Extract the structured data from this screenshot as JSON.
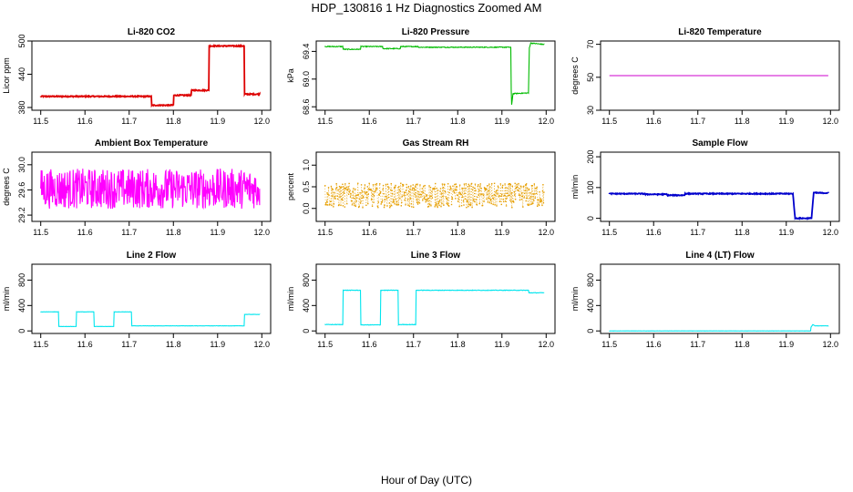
{
  "figure": {
    "title": "HDP_130816  1 Hz Diagnostics Zoomed AM",
    "xlabel": "Hour of Day (UTC)"
  },
  "chart_data": [
    {
      "type": "line",
      "title": "Li-820 CO2",
      "ylabel": "Licor ppm",
      "color": "#dd0000",
      "xlim": [
        11.5,
        12.0
      ],
      "ylim": [
        375,
        500
      ],
      "xticks": [
        "11.5",
        "11.6",
        "11.7",
        "11.8",
        "11.9",
        "12.0"
      ],
      "yticks": [
        {
          "v": 380,
          "t": "380"
        },
        {
          "v": 440,
          "t": "440"
        },
        {
          "v": 500,
          "t": "500"
        }
      ],
      "noise": 1,
      "x": [
        11.5,
        11.75,
        11.751,
        11.8,
        11.801,
        11.84,
        11.841,
        11.88,
        11.881,
        11.96,
        11.961,
        11.995
      ],
      "y": [
        400,
        400,
        384,
        384,
        402,
        402,
        411,
        411,
        491,
        491,
        404,
        404
      ]
    },
    {
      "type": "line",
      "title": "Li-820 Pressure",
      "ylabel": "kPa",
      "color": "#00bb00",
      "xlim": [
        11.5,
        12.0
      ],
      "ylim": [
        68.55,
        69.55
      ],
      "xticks": [
        "11.5",
        "11.6",
        "11.7",
        "11.8",
        "11.9",
        "12.0"
      ],
      "yticks": [
        {
          "v": 68.6,
          "t": "68.6"
        },
        {
          "v": 69.0,
          "t": "69.0"
        },
        {
          "v": 69.4,
          "t": "69.4"
        }
      ],
      "noise": 0.006,
      "x": [
        11.5,
        11.54,
        11.541,
        11.58,
        11.581,
        11.63,
        11.631,
        11.67,
        11.671,
        11.71,
        11.711,
        11.92,
        11.921,
        11.922,
        11.925,
        11.96,
        11.962,
        11.965,
        11.995
      ],
      "y": [
        69.47,
        69.47,
        69.43,
        69.43,
        69.47,
        69.47,
        69.44,
        69.44,
        69.47,
        69.47,
        69.46,
        69.46,
        68.85,
        68.63,
        68.79,
        68.8,
        69.45,
        69.52,
        69.5
      ]
    },
    {
      "type": "line",
      "title": "Li-820 Temperature",
      "ylabel": "degrees C",
      "color": "#cc00cc",
      "xlim": [
        11.5,
        12.0
      ],
      "ylim": [
        30,
        72
      ],
      "xticks": [
        "11.5",
        "11.6",
        "11.7",
        "11.8",
        "11.9",
        "12.0"
      ],
      "yticks": [
        {
          "v": 30,
          "t": "30"
        },
        {
          "v": 50,
          "t": "50"
        },
        {
          "v": 70,
          "t": "70"
        }
      ],
      "noise": 0,
      "x": [
        11.5,
        11.995
      ],
      "y": [
        51,
        51
      ]
    },
    {
      "type": "line",
      "title": "Ambient Box Temperature",
      "ylabel": "degrees C",
      "color": "#ff00ff",
      "xlim": [
        11.5,
        12.0
      ],
      "ylim": [
        29.1,
        30.2
      ],
      "xticks": [
        "11.5",
        "11.6",
        "11.7",
        "11.8",
        "11.9",
        "12.0"
      ],
      "yticks": [
        {
          "v": 29.2,
          "t": "29.2"
        },
        {
          "v": 29.6,
          "t": "29.6"
        },
        {
          "v": 30.0,
          "t": "30.0"
        }
      ],
      "noise": 0.32,
      "x": [
        11.5,
        11.995
      ],
      "y": [
        29.62,
        29.62
      ]
    },
    {
      "type": "scatter",
      "title": "Gas Stream RH",
      "ylabel": "percent",
      "color": "#e69f00",
      "xlim": [
        11.5,
        12.0
      ],
      "ylim": [
        -0.3,
        1.3
      ],
      "xticks": [
        "11.5",
        "11.6",
        "11.7",
        "11.8",
        "11.9",
        "12.0"
      ],
      "yticks": [
        {
          "v": 0.0,
          "t": "0.0"
        },
        {
          "v": 0.5,
          "t": "0.5"
        },
        {
          "v": 1.0,
          "t": "1.0"
        }
      ],
      "noise": 0.28,
      "x": [
        11.5,
        11.995
      ],
      "y": [
        0.3,
        0.3
      ]
    },
    {
      "type": "line",
      "title": "Sample Flow",
      "ylabel": "ml/min",
      "color": "#0000cc",
      "xlim": [
        11.5,
        12.0
      ],
      "ylim": [
        -10,
        215
      ],
      "xticks": [
        "11.5",
        "11.6",
        "11.7",
        "11.8",
        "11.9",
        "12.0"
      ],
      "yticks": [
        {
          "v": 0,
          "t": "0"
        },
        {
          "v": 100,
          "t": "100"
        },
        {
          "v": 200,
          "t": "200"
        }
      ],
      "noise": 1.5,
      "x": [
        11.5,
        11.58,
        11.581,
        11.63,
        11.631,
        11.67,
        11.671,
        11.71,
        11.711,
        11.915,
        11.92,
        11.957,
        11.962,
        11.995
      ],
      "y": [
        80,
        80,
        78,
        78,
        75,
        75,
        80,
        80,
        80,
        80,
        0,
        0,
        83,
        82
      ]
    },
    {
      "type": "line",
      "title": "Line 2 Flow",
      "ylabel": "ml/min",
      "color": "#00e5ee",
      "xlim": [
        11.5,
        12.0
      ],
      "ylim": [
        -40,
        1050
      ],
      "xticks": [
        "11.5",
        "11.6",
        "11.7",
        "11.8",
        "11.9",
        "12.0"
      ],
      "yticks": [
        {
          "v": 0,
          "t": "0"
        },
        {
          "v": 400,
          "t": "400"
        },
        {
          "v": 800,
          "t": "800"
        }
      ],
      "noise": 2,
      "x": [
        11.5,
        11.54,
        11.541,
        11.58,
        11.581,
        11.62,
        11.621,
        11.665,
        11.666,
        11.705,
        11.706,
        11.96,
        11.961,
        11.995
      ],
      "y": [
        300,
        300,
        70,
        70,
        300,
        300,
        70,
        70,
        300,
        300,
        80,
        80,
        260,
        260
      ]
    },
    {
      "type": "line",
      "title": "Line 3 Flow",
      "ylabel": "ml/min",
      "color": "#00e5ee",
      "xlim": [
        11.5,
        12.0
      ],
      "ylim": [
        -40,
        1050
      ],
      "xticks": [
        "11.5",
        "11.6",
        "11.7",
        "11.8",
        "11.9",
        "12.0"
      ],
      "yticks": [
        {
          "v": 0,
          "t": "0"
        },
        {
          "v": 400,
          "t": "400"
        },
        {
          "v": 800,
          "t": "800"
        }
      ],
      "noise": 4,
      "x": [
        11.5,
        11.54,
        11.541,
        11.58,
        11.581,
        11.625,
        11.626,
        11.665,
        11.666,
        11.705,
        11.706,
        11.96,
        11.961,
        11.995
      ],
      "y": [
        100,
        100,
        640,
        640,
        95,
        95,
        640,
        640,
        100,
        100,
        640,
        640,
        600,
        600
      ]
    },
    {
      "type": "line",
      "title": "Line 4 (LT) Flow",
      "ylabel": "ml/min",
      "color": "#00e5ee",
      "xlim": [
        11.5,
        12.0
      ],
      "ylim": [
        -40,
        1050
      ],
      "xticks": [
        "11.5",
        "11.6",
        "11.7",
        "11.8",
        "11.9",
        "12.0"
      ],
      "yticks": [
        {
          "v": 0,
          "t": "0"
        },
        {
          "v": 400,
          "t": "400"
        },
        {
          "v": 800,
          "t": "800"
        }
      ],
      "noise": 1,
      "x": [
        11.5,
        11.955,
        11.956,
        11.96,
        11.965,
        11.995
      ],
      "y": [
        0,
        0,
        60,
        100,
        80,
        80
      ]
    }
  ]
}
